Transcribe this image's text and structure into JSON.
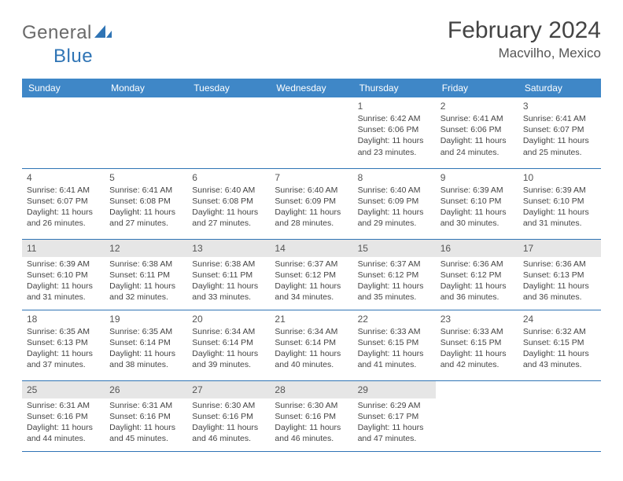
{
  "brand": {
    "word1": "General",
    "word2": "Blue"
  },
  "title": "February 2024",
  "location": "Macvilho, Mexico",
  "colors": {
    "header_bg": "#3f87c7",
    "rule": "#2f74b5",
    "shade": "#e6e6e6",
    "text": "#444444",
    "logo_gray": "#6a6a6a",
    "logo_blue": "#2f74b5"
  },
  "daysOfWeek": [
    "Sunday",
    "Monday",
    "Tuesday",
    "Wednesday",
    "Thursday",
    "Friday",
    "Saturday"
  ],
  "weeks": [
    [
      null,
      null,
      null,
      null,
      {
        "n": "1",
        "sunrise": "6:42 AM",
        "sunset": "6:06 PM",
        "dl_h": 11,
        "dl_m": 23
      },
      {
        "n": "2",
        "sunrise": "6:41 AM",
        "sunset": "6:06 PM",
        "dl_h": 11,
        "dl_m": 24
      },
      {
        "n": "3",
        "sunrise": "6:41 AM",
        "sunset": "6:07 PM",
        "dl_h": 11,
        "dl_m": 25
      }
    ],
    [
      {
        "n": "4",
        "sunrise": "6:41 AM",
        "sunset": "6:07 PM",
        "dl_h": 11,
        "dl_m": 26
      },
      {
        "n": "5",
        "sunrise": "6:41 AM",
        "sunset": "6:08 PM",
        "dl_h": 11,
        "dl_m": 27
      },
      {
        "n": "6",
        "sunrise": "6:40 AM",
        "sunset": "6:08 PM",
        "dl_h": 11,
        "dl_m": 27
      },
      {
        "n": "7",
        "sunrise": "6:40 AM",
        "sunset": "6:09 PM",
        "dl_h": 11,
        "dl_m": 28
      },
      {
        "n": "8",
        "sunrise": "6:40 AM",
        "sunset": "6:09 PM",
        "dl_h": 11,
        "dl_m": 29
      },
      {
        "n": "9",
        "sunrise": "6:39 AM",
        "sunset": "6:10 PM",
        "dl_h": 11,
        "dl_m": 30
      },
      {
        "n": "10",
        "sunrise": "6:39 AM",
        "sunset": "6:10 PM",
        "dl_h": 11,
        "dl_m": 31
      }
    ],
    [
      {
        "n": "11",
        "sunrise": "6:39 AM",
        "sunset": "6:10 PM",
        "dl_h": 11,
        "dl_m": 31
      },
      {
        "n": "12",
        "sunrise": "6:38 AM",
        "sunset": "6:11 PM",
        "dl_h": 11,
        "dl_m": 32
      },
      {
        "n": "13",
        "sunrise": "6:38 AM",
        "sunset": "6:11 PM",
        "dl_h": 11,
        "dl_m": 33
      },
      {
        "n": "14",
        "sunrise": "6:37 AM",
        "sunset": "6:12 PM",
        "dl_h": 11,
        "dl_m": 34
      },
      {
        "n": "15",
        "sunrise": "6:37 AM",
        "sunset": "6:12 PM",
        "dl_h": 11,
        "dl_m": 35
      },
      {
        "n": "16",
        "sunrise": "6:36 AM",
        "sunset": "6:12 PM",
        "dl_h": 11,
        "dl_m": 36
      },
      {
        "n": "17",
        "sunrise": "6:36 AM",
        "sunset": "6:13 PM",
        "dl_h": 11,
        "dl_m": 36
      }
    ],
    [
      {
        "n": "18",
        "sunrise": "6:35 AM",
        "sunset": "6:13 PM",
        "dl_h": 11,
        "dl_m": 37
      },
      {
        "n": "19",
        "sunrise": "6:35 AM",
        "sunset": "6:14 PM",
        "dl_h": 11,
        "dl_m": 38
      },
      {
        "n": "20",
        "sunrise": "6:34 AM",
        "sunset": "6:14 PM",
        "dl_h": 11,
        "dl_m": 39
      },
      {
        "n": "21",
        "sunrise": "6:34 AM",
        "sunset": "6:14 PM",
        "dl_h": 11,
        "dl_m": 40
      },
      {
        "n": "22",
        "sunrise": "6:33 AM",
        "sunset": "6:15 PM",
        "dl_h": 11,
        "dl_m": 41
      },
      {
        "n": "23",
        "sunrise": "6:33 AM",
        "sunset": "6:15 PM",
        "dl_h": 11,
        "dl_m": 42
      },
      {
        "n": "24",
        "sunrise": "6:32 AM",
        "sunset": "6:15 PM",
        "dl_h": 11,
        "dl_m": 43
      }
    ],
    [
      {
        "n": "25",
        "sunrise": "6:31 AM",
        "sunset": "6:16 PM",
        "dl_h": 11,
        "dl_m": 44
      },
      {
        "n": "26",
        "sunrise": "6:31 AM",
        "sunset": "6:16 PM",
        "dl_h": 11,
        "dl_m": 45
      },
      {
        "n": "27",
        "sunrise": "6:30 AM",
        "sunset": "6:16 PM",
        "dl_h": 11,
        "dl_m": 46
      },
      {
        "n": "28",
        "sunrise": "6:30 AM",
        "sunset": "6:16 PM",
        "dl_h": 11,
        "dl_m": 46
      },
      {
        "n": "29",
        "sunrise": "6:29 AM",
        "sunset": "6:17 PM",
        "dl_h": 11,
        "dl_m": 47
      },
      null,
      null
    ]
  ],
  "shaded_rows": [
    2,
    4
  ],
  "labels": {
    "sunrise": "Sunrise:",
    "sunset": "Sunset:",
    "daylight": "Daylight:",
    "hours": "hours",
    "and": "and",
    "minutes": "minutes."
  }
}
